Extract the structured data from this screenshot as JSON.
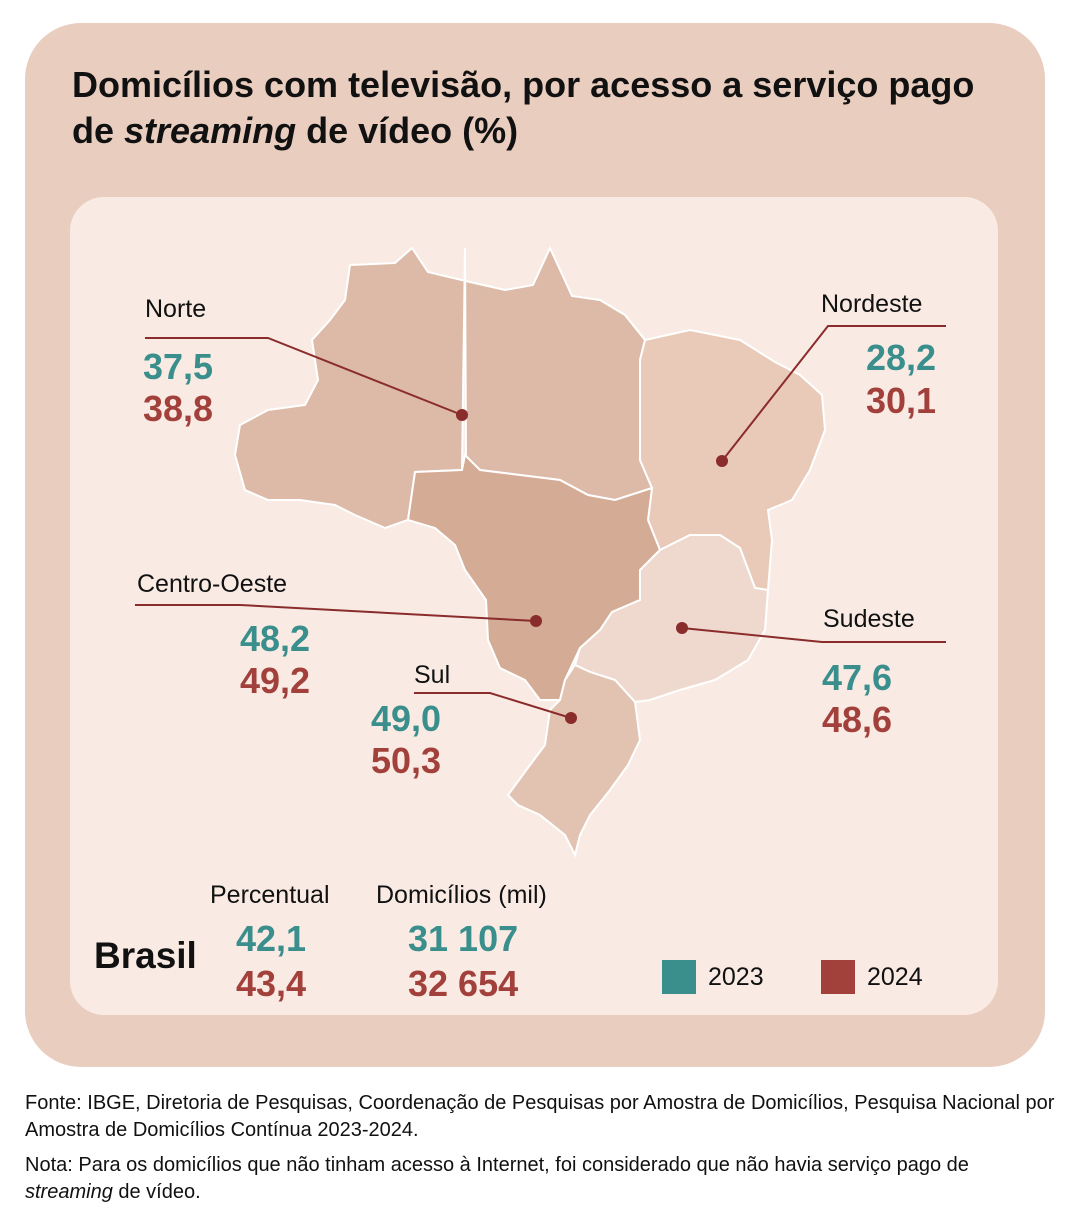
{
  "title_part1": "Domicílios com televisão, por acesso a serviço pago de ",
  "title_italic": "streaming",
  "title_part2": " de vídeo (%)",
  "colors": {
    "y2023": "#3a8e8c",
    "y2024": "#a2403b",
    "card": "#e9cdbf",
    "inner": "#f9ebe4"
  },
  "chart_data": {
    "type": "map",
    "series": [
      {
        "name": "2023"
      },
      {
        "name": "2024"
      }
    ],
    "regions": [
      {
        "name": "Norte",
        "v2023": "37,5",
        "v2024": "38,8"
      },
      {
        "name": "Nordeste",
        "v2023": "28,2",
        "v2024": "30,1"
      },
      {
        "name": "Centro-Oeste",
        "v2023": "48,2",
        "v2024": "49,2"
      },
      {
        "name": "Sudeste",
        "v2023": "47,6",
        "v2024": "48,6"
      },
      {
        "name": "Sul",
        "v2023": "49,0",
        "v2024": "50,3"
      }
    ],
    "total": {
      "name": "Brasil",
      "percent_header": "Percentual",
      "households_header": "Domicílios (mil)",
      "percent_2023": "42,1",
      "percent_2024": "43,4",
      "households_2023": "31 107",
      "households_2024": "32 654"
    },
    "legend": [
      "2023",
      "2024"
    ]
  },
  "footer": {
    "source": "Fonte: IBGE, Diretoria de Pesquisas, Coordenação de Pesquisas por Amostra de Domicílios, Pesquisa Nacional por Amostra de Domicílios Contínua 2023-2024.",
    "note_part1": "Nota: Para os domicílios que não tinham acesso à Internet, foi considerado que não havia serviço pago de ",
    "note_italic": "streaming",
    "note_part2": " de vídeo."
  }
}
